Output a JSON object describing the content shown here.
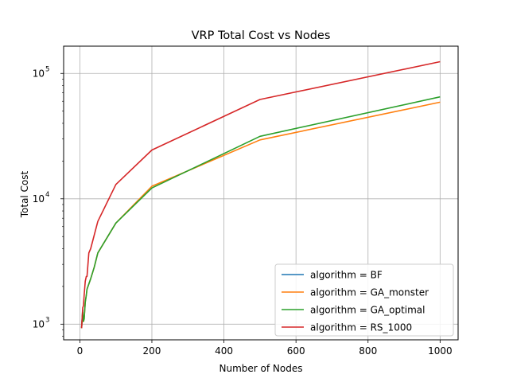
{
  "chart_data": {
    "type": "line",
    "title": "VRP Total Cost vs Nodes",
    "xlabel": "Number of Nodes",
    "ylabel": "Total Cost",
    "xlim": [
      -45,
      1050
    ],
    "ylim": [
      750,
      165000
    ],
    "yscale": "log",
    "grid": true,
    "legend_position": "lower-right",
    "x_ticks": [
      {
        "value": 0,
        "label": "0"
      },
      {
        "value": 200,
        "label": "200"
      },
      {
        "value": 400,
        "label": "400"
      },
      {
        "value": 600,
        "label": "600"
      },
      {
        "value": 800,
        "label": "800"
      },
      {
        "value": 1000,
        "label": "1000"
      }
    ],
    "y_ticks": [
      {
        "value": 1000,
        "base": "10",
        "exp": "3"
      },
      {
        "value": 10000,
        "base": "10",
        "exp": "4"
      },
      {
        "value": 100000,
        "base": "10",
        "exp": "5"
      }
    ],
    "series": [
      {
        "name": "algorithm = BF",
        "color": "#1f77b4",
        "x": [
          5,
          8
        ],
        "y": [
          950,
          1300
        ]
      },
      {
        "name": "algorithm = GA_monster",
        "color": "#ff7f0e",
        "x": [
          5,
          8,
          10,
          12,
          15,
          18,
          20,
          30,
          40,
          50,
          100,
          200,
          500,
          1000
        ],
        "y": [
          930,
          1250,
          1050,
          1100,
          1500,
          1700,
          1900,
          2300,
          2850,
          3700,
          6400,
          12600,
          29500,
          59000
        ]
      },
      {
        "name": "algorithm = GA_optimal",
        "color": "#2ca02c",
        "x": [
          5,
          8,
          10,
          12,
          15,
          18,
          20,
          30,
          40,
          50,
          100,
          200,
          500,
          1000
        ],
        "y": [
          930,
          1250,
          1050,
          1100,
          1500,
          1700,
          1900,
          2300,
          2850,
          3700,
          6400,
          12200,
          31500,
          65000
        ]
      },
      {
        "name": "algorithm = RS_1000",
        "color": "#d62728",
        "x": [
          5,
          8,
          10,
          12,
          15,
          18,
          20,
          25,
          30,
          50,
          100,
          200,
          500,
          1000
        ],
        "y": [
          930,
          1350,
          1400,
          1700,
          2200,
          2400,
          2400,
          3700,
          4000,
          6600,
          13000,
          24500,
          62000,
          124000
        ]
      }
    ]
  }
}
